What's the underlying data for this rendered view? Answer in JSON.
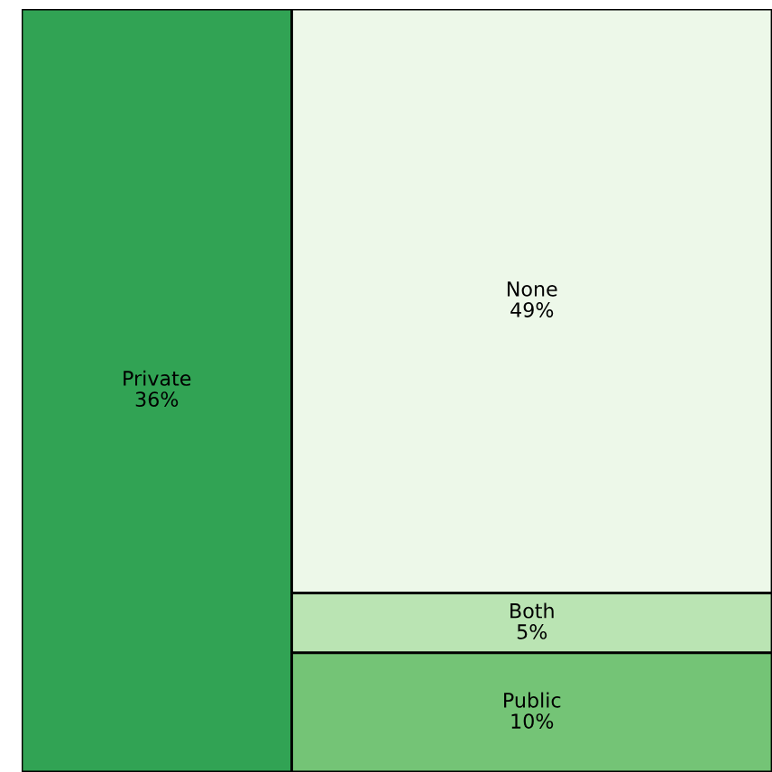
{
  "chart_data": {
    "type": "other",
    "categories": [
      "Private",
      "None",
      "Both",
      "Public"
    ],
    "values": [
      36,
      49,
      5,
      10
    ],
    "value_labels": [
      "36%",
      "49%",
      "5%",
      "10%"
    ],
    "colors": [
      "#31a354",
      "#edf8e9",
      "#bae4b3",
      "#74c476"
    ]
  }
}
